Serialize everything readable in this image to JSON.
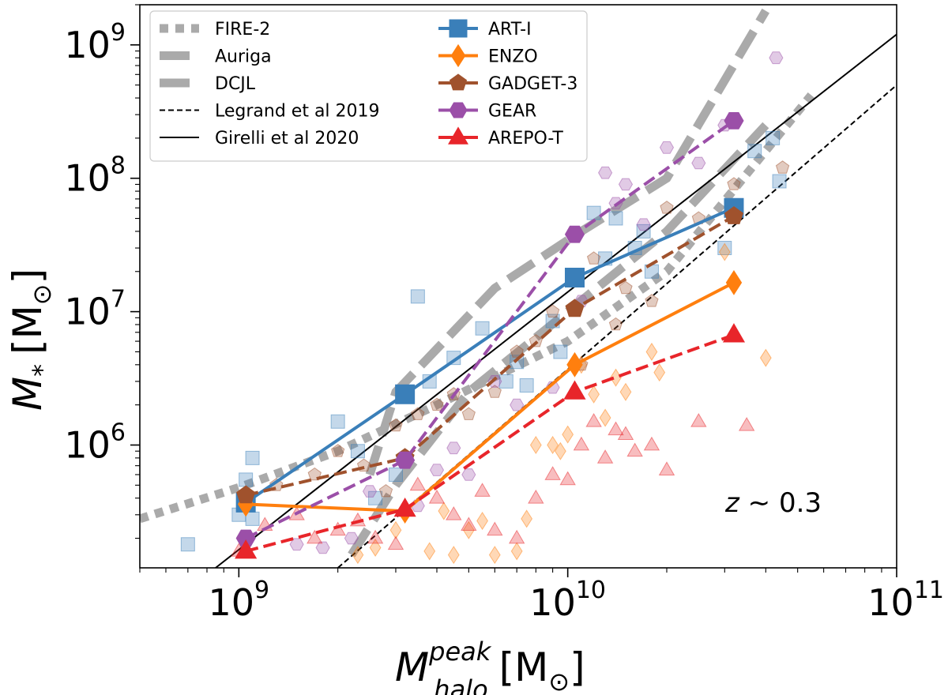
{
  "chart_data": {
    "type": "scatter",
    "title": "",
    "xscale": "log",
    "yscale": "log",
    "xlim": [
      500000000,
      100000000000
    ],
    "ylim": [
      120000,
      2000000000
    ],
    "xlabel": {
      "base": "M",
      "sup": "peak",
      "sub": "halo",
      "unit": "[M",
      "unit_sub": "⊙",
      "unit_close": "]"
    },
    "ylabel": {
      "base": "M",
      "sub": "*",
      "unit": "[M",
      "unit_sub": "⊙",
      "unit_close": "]"
    },
    "x_ticks": [
      {
        "value": 1000000000,
        "base": "10",
        "exp": "9"
      },
      {
        "value": 10000000000,
        "base": "10",
        "exp": "10"
      },
      {
        "value": 100000000000,
        "base": "10",
        "exp": "11"
      }
    ],
    "y_ticks": [
      {
        "value": 1000000,
        "base": "10",
        "exp": "6"
      },
      {
        "value": 10000000,
        "base": "10",
        "exp": "7"
      },
      {
        "value": 100000000,
        "base": "10",
        "exp": "8"
      },
      {
        "value": 1000000000,
        "base": "10",
        "exp": "9"
      }
    ],
    "annotation": {
      "text": "z ∼ 0.3",
      "var": "z",
      "rest": " ∼ 0.3"
    },
    "legend_position": "top-left",
    "reference_lines": [
      {
        "name": "FIRE-2",
        "color": "#aaaaaa",
        "style": "dotted",
        "x": [
          500000000,
          1000000000,
          2000000000,
          4000000000,
          10000000000,
          20000000000,
          55000000000
        ],
        "y": [
          280000,
          480000,
          900000,
          2000000,
          6000000,
          20000000,
          420000000
        ]
      },
      {
        "name": "Auriga",
        "color": "#aaaaaa",
        "style": "dashed-wide",
        "x": [
          2500000000,
          3000000000,
          6000000000,
          11000000000,
          20000000000,
          40000000000
        ],
        "y": [
          600000,
          2500000,
          15000000,
          40000000,
          100000000,
          1800000000
        ]
      },
      {
        "name": "DCJL",
        "color": "#aaaaaa",
        "style": "dashed-wide",
        "x": [
          2200000000,
          3000000000,
          5000000000,
          10000000000,
          20000000000,
          40000000000
        ],
        "y": [
          150000,
          500000,
          2500000,
          10000000,
          40000000,
          250000000
        ]
      },
      {
        "name": "Legrand et al 2019",
        "color": "#000000",
        "style": "dashed-thin",
        "x": [
          2000000000,
          100000000000
        ],
        "y": [
          120000,
          500000000
        ]
      },
      {
        "name": "Girelli et al 2020",
        "color": "#000000",
        "style": "solid-thin",
        "x": [
          850000000,
          100000000000
        ],
        "y": [
          120000,
          1200000000
        ]
      }
    ],
    "series": [
      {
        "name": "ART-I",
        "color": "#3a7fb9",
        "marker": "square",
        "line": "solid",
        "x": [
          1050000000,
          3200000000,
          10500000000,
          32000000000
        ],
        "y": [
          370000,
          2400000,
          18000000,
          60000000
        ],
        "scatter_x": [
          700000000,
          1000000000,
          1050000000,
          1100000000,
          1100000000,
          2000000000,
          2300000000,
          2600000000,
          3000000000,
          3500000000,
          3800000000,
          4500000000,
          5500000000,
          6500000000,
          7000000000,
          7500000000,
          9000000000,
          9500000000,
          12000000000,
          13000000000,
          14000000000,
          16000000000,
          17000000000,
          18000000000,
          30000000000,
          37000000000,
          42000000000,
          44000000000
        ],
        "scatter_y": [
          180000,
          300000,
          550000,
          800000,
          280000,
          1500000,
          900000,
          400000,
          600000,
          13000000,
          3000000,
          4500000,
          7500000,
          3000000,
          4200000,
          2800000,
          8500000,
          5000000,
          55000000,
          25000000,
          50000000,
          30000000,
          40000000,
          20000000,
          30000000,
          160000000,
          200000000,
          95000000
        ]
      },
      {
        "name": "ENZO",
        "color": "#ff7f0e",
        "marker": "diamond",
        "line": "solid",
        "x": [
          1050000000,
          3200000000,
          10500000000,
          32000000000
        ],
        "y": [
          360000,
          320000,
          4000000,
          16500000
        ],
        "scatter_x": [
          2300000000,
          2600000000,
          3000000000,
          3800000000,
          4200000000,
          4500000000,
          5000000000,
          5500000000,
          6000000000,
          7000000000,
          7500000000,
          8000000000,
          9000000000,
          9500000000,
          10000000000,
          11000000000,
          12000000000,
          13000000000,
          14000000000,
          15000000000,
          18000000000,
          19000000000,
          30000000000,
          40000000000
        ],
        "scatter_y": [
          150000,
          170000,
          230000,
          160000,
          320000,
          150000,
          230000,
          270000,
          150000,
          160000,
          280000,
          1000000,
          1000000,
          900000,
          1200000,
          4000000,
          2400000,
          1600000,
          3200000,
          2500000,
          5000000,
          3500000,
          28000000,
          4500000
        ]
      },
      {
        "name": "GADGET-3",
        "color": "#a0522d",
        "marker": "pentagon",
        "line": "dashed",
        "x": [
          1050000000,
          3200000000,
          10500000000,
          32000000000
        ],
        "y": [
          420000,
          800000,
          10500000,
          52000000
        ],
        "scatter_x": [
          1300000000,
          1700000000,
          2000000000,
          2400000000,
          2800000000,
          3000000000,
          3500000000,
          4000000000,
          4500000000,
          5000000000,
          6000000000,
          7000000000,
          8000000000,
          9000000000,
          11000000000,
          12000000000,
          14000000000,
          15000000000,
          18000000000,
          20000000000,
          25000000000,
          32000000000,
          45000000000
        ],
        "scatter_y": [
          500000,
          600000,
          900000,
          700000,
          450000,
          1400000,
          1700000,
          2000000,
          2400000,
          1700000,
          2500000,
          5000000,
          6000000,
          10000000,
          4000000,
          25000000,
          8000000,
          15000000,
          12000000,
          60000000,
          50000000,
          90000000,
          120000000
        ]
      },
      {
        "name": "GEAR",
        "color": "#9b4fa8",
        "marker": "hexagon",
        "line": "dashed",
        "x": [
          1050000000,
          3200000000,
          10500000000,
          32000000000
        ],
        "y": [
          200000,
          770000,
          38000000,
          270000000
        ],
        "scatter_x": [
          1500000000,
          1800000000,
          2200000000,
          2500000000,
          3500000000,
          4000000000,
          4500000000,
          5000000000,
          6000000000,
          7000000000,
          9000000000,
          11000000000,
          13000000000,
          14000000000,
          15000000000,
          17000000000,
          20000000000,
          25000000000,
          30000000000,
          43000000000
        ],
        "scatter_y": [
          180000,
          170000,
          200000,
          450000,
          350000,
          650000,
          950000,
          600000,
          3000000,
          2000000,
          2700000,
          12000000,
          110000000,
          65000000,
          90000000,
          45000000,
          170000000,
          130000000,
          250000000,
          800000000
        ]
      },
      {
        "name": "AREPO-T",
        "color": "#e8252a",
        "marker": "triangle",
        "line": "dashed",
        "x": [
          1050000000,
          3200000000,
          10500000000,
          32000000000
        ],
        "y": [
          160000,
          330000,
          2500000,
          6700000
        ],
        "scatter_x": [
          1000000000,
          1200000000,
          1500000000,
          1700000000,
          2000000000,
          2300000000,
          2600000000,
          3000000000,
          3500000000,
          4000000000,
          4500000000,
          5000000000,
          5500000000,
          6000000000,
          7000000000,
          8000000000,
          9000000000,
          10000000000,
          11000000000,
          12000000000,
          13000000000,
          14000000000,
          15000000000,
          16000000000,
          18000000000,
          20000000000,
          25000000000,
          35000000000
        ],
        "scatter_y": [
          160000,
          250000,
          300000,
          200000,
          230000,
          270000,
          200000,
          180000,
          500000,
          400000,
          300000,
          250000,
          450000,
          230000,
          200000,
          400000,
          600000,
          550000,
          1000000,
          1500000,
          800000,
          1300000,
          1200000,
          900000,
          1000000,
          650000,
          1500000,
          1400000
        ]
      }
    ]
  }
}
